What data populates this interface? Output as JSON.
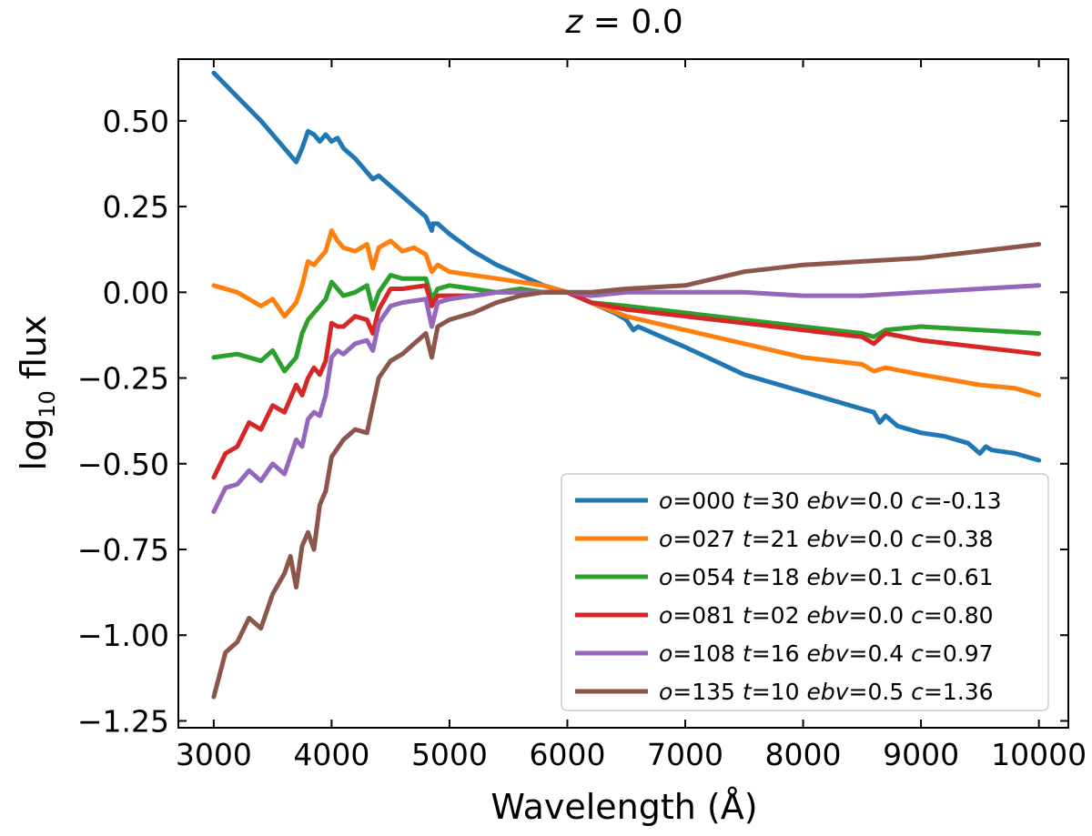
{
  "chart_data": {
    "type": "line",
    "title": {
      "var": "z",
      "op": " = ",
      "value": "0.0"
    },
    "xlabel": "Wavelength (Å)",
    "ylabel": {
      "base": "log",
      "sub": "10",
      "rest": " flux"
    },
    "xlim": [
      2700,
      10250
    ],
    "ylim": [
      -1.27,
      0.68
    ],
    "xticks": [
      3000,
      4000,
      5000,
      6000,
      7000,
      8000,
      9000,
      10000
    ],
    "xtick_labels": [
      "3000",
      "4000",
      "5000",
      "6000",
      "7000",
      "8000",
      "9000",
      "10000"
    ],
    "yticks": [
      0.5,
      0.25,
      0.0,
      -0.25,
      -0.5,
      -0.75,
      -1.0,
      -1.25
    ],
    "ytick_labels": [
      "0.50",
      "0.25",
      "0.00",
      "−0.25",
      "−0.50",
      "−0.75",
      "−1.00",
      "−1.25"
    ],
    "legend_position": "lower-right",
    "series": [
      {
        "name": "o=000 t=30 ebv=0.0 c=-0.13",
        "legend": [
          {
            "t": "o",
            "i": true
          },
          {
            "t": "=000 "
          },
          {
            "t": "t",
            "i": true
          },
          {
            "t": "=30 "
          },
          {
            "t": "ebv",
            "i": true
          },
          {
            "t": "=0.0 "
          },
          {
            "t": "c",
            "i": true
          },
          {
            "t": "=-0.13"
          }
        ],
        "color": "#1f77b4",
        "x": [
          3000,
          3200,
          3400,
          3600,
          3700,
          3750,
          3800,
          3850,
          3900,
          3950,
          4000,
          4050,
          4100,
          4200,
          4300,
          4350,
          4400,
          4500,
          4600,
          4700,
          4800,
          4850,
          4860,
          4900,
          5000,
          5200,
          5400,
          5600,
          5800,
          6000,
          6200,
          6400,
          6500,
          6560,
          6600,
          6800,
          7000,
          7500,
          8000,
          8500,
          8600,
          8650,
          8700,
          8800,
          9000,
          9200,
          9400,
          9500,
          9550,
          9600,
          9800,
          10000
        ],
        "y": [
          0.64,
          0.57,
          0.5,
          0.42,
          0.38,
          0.42,
          0.47,
          0.46,
          0.44,
          0.46,
          0.44,
          0.45,
          0.42,
          0.39,
          0.35,
          0.33,
          0.34,
          0.31,
          0.28,
          0.25,
          0.22,
          0.18,
          0.2,
          0.2,
          0.17,
          0.12,
          0.08,
          0.05,
          0.02,
          0.0,
          -0.03,
          -0.06,
          -0.08,
          -0.11,
          -0.1,
          -0.13,
          -0.16,
          -0.24,
          -0.29,
          -0.34,
          -0.35,
          -0.38,
          -0.36,
          -0.39,
          -0.41,
          -0.42,
          -0.44,
          -0.47,
          -0.45,
          -0.46,
          -0.47,
          -0.49
        ]
      },
      {
        "name": "o=027 t=21 ebv=0.0 c=0.38",
        "legend": [
          {
            "t": "o",
            "i": true
          },
          {
            "t": "=027 "
          },
          {
            "t": "t",
            "i": true
          },
          {
            "t": "=21 "
          },
          {
            "t": "ebv",
            "i": true
          },
          {
            "t": "=0.0 "
          },
          {
            "t": "c",
            "i": true
          },
          {
            "t": "=0.38"
          }
        ],
        "color": "#ff7f0e",
        "x": [
          3000,
          3200,
          3400,
          3500,
          3600,
          3700,
          3750,
          3800,
          3850,
          3900,
          3950,
          4000,
          4050,
          4100,
          4200,
          4300,
          4350,
          4400,
          4500,
          4600,
          4700,
          4800,
          4850,
          4900,
          5000,
          5200,
          5400,
          5600,
          5800,
          6000,
          6200,
          6500,
          7000,
          7500,
          8000,
          8500,
          8600,
          8700,
          9000,
          9500,
          9800,
          10000
        ],
        "y": [
          0.02,
          0.0,
          -0.04,
          -0.02,
          -0.07,
          -0.03,
          0.02,
          0.09,
          0.08,
          0.1,
          0.12,
          0.18,
          0.15,
          0.13,
          0.12,
          0.14,
          0.07,
          0.13,
          0.15,
          0.12,
          0.13,
          0.11,
          0.06,
          0.08,
          0.06,
          0.05,
          0.04,
          0.03,
          0.02,
          0.0,
          -0.03,
          -0.07,
          -0.11,
          -0.15,
          -0.19,
          -0.21,
          -0.23,
          -0.22,
          -0.24,
          -0.27,
          -0.28,
          -0.3
        ]
      },
      {
        "name": "o=054 t=18 ebv=0.1 c=0.61",
        "legend": [
          {
            "t": "o",
            "i": true
          },
          {
            "t": "=054 "
          },
          {
            "t": "t",
            "i": true
          },
          {
            "t": "=18 "
          },
          {
            "t": "ebv",
            "i": true
          },
          {
            "t": "=0.1 "
          },
          {
            "t": "c",
            "i": true
          },
          {
            "t": "=0.61"
          }
        ],
        "color": "#2ca02c",
        "x": [
          3000,
          3200,
          3400,
          3500,
          3600,
          3700,
          3750,
          3800,
          3850,
          3900,
          3950,
          4000,
          4050,
          4100,
          4200,
          4300,
          4350,
          4400,
          4500,
          4600,
          4800,
          4850,
          4900,
          5000,
          5200,
          5400,
          5600,
          5800,
          6000,
          6200,
          6500,
          7000,
          7500,
          8000,
          8500,
          8600,
          8700,
          9000,
          9500,
          10000
        ],
        "y": [
          -0.19,
          -0.18,
          -0.2,
          -0.17,
          -0.23,
          -0.19,
          -0.12,
          -0.08,
          -0.06,
          -0.04,
          -0.02,
          0.03,
          0.01,
          -0.01,
          0.0,
          0.02,
          -0.05,
          0.0,
          0.05,
          0.04,
          0.04,
          -0.02,
          0.01,
          0.02,
          0.01,
          0.0,
          0.01,
          0.0,
          0.0,
          -0.03,
          -0.04,
          -0.06,
          -0.08,
          -0.1,
          -0.12,
          -0.13,
          -0.11,
          -0.1,
          -0.11,
          -0.12
        ]
      },
      {
        "name": "o=081 t=02 ebv=0.0 c=0.80",
        "legend": [
          {
            "t": "o",
            "i": true
          },
          {
            "t": "=081 "
          },
          {
            "t": "t",
            "i": true
          },
          {
            "t": "=02 "
          },
          {
            "t": "ebv",
            "i": true
          },
          {
            "t": "=0.0 "
          },
          {
            "t": "c",
            "i": true
          },
          {
            "t": "=0.80"
          }
        ],
        "color": "#d62728",
        "x": [
          3000,
          3100,
          3200,
          3300,
          3400,
          3500,
          3600,
          3700,
          3750,
          3800,
          3850,
          3900,
          3950,
          4000,
          4050,
          4100,
          4200,
          4300,
          4350,
          4400,
          4500,
          4600,
          4800,
          4850,
          4900,
          5000,
          5200,
          5400,
          5600,
          5800,
          6000,
          6200,
          6500,
          7000,
          7500,
          8000,
          8500,
          8600,
          8700,
          9000,
          9500,
          10000
        ],
        "y": [
          -0.54,
          -0.47,
          -0.45,
          -0.38,
          -0.4,
          -0.33,
          -0.35,
          -0.27,
          -0.3,
          -0.25,
          -0.22,
          -0.24,
          -0.2,
          -0.09,
          -0.1,
          -0.1,
          -0.07,
          -0.08,
          -0.12,
          -0.05,
          0.01,
          0.01,
          0.02,
          -0.04,
          -0.01,
          -0.01,
          -0.01,
          0.0,
          0.0,
          0.0,
          0.0,
          -0.03,
          -0.05,
          -0.07,
          -0.09,
          -0.11,
          -0.13,
          -0.15,
          -0.12,
          -0.14,
          -0.16,
          -0.18
        ]
      },
      {
        "name": "o=108 t=16 ebv=0.4 c=0.97",
        "legend": [
          {
            "t": "o",
            "i": true
          },
          {
            "t": "=108 "
          },
          {
            "t": "t",
            "i": true
          },
          {
            "t": "=16 "
          },
          {
            "t": "ebv",
            "i": true
          },
          {
            "t": "=0.4 "
          },
          {
            "t": "c",
            "i": true
          },
          {
            "t": "=0.97"
          }
        ],
        "color": "#9467bd",
        "x": [
          3000,
          3100,
          3200,
          3300,
          3400,
          3500,
          3600,
          3700,
          3750,
          3800,
          3850,
          3900,
          3950,
          4000,
          4050,
          4100,
          4200,
          4300,
          4350,
          4400,
          4500,
          4600,
          4800,
          4850,
          4900,
          5000,
          5200,
          5400,
          5600,
          5800,
          6000,
          6200,
          6500,
          7000,
          7500,
          8000,
          8500,
          9000,
          9500,
          10000
        ],
        "y": [
          -0.64,
          -0.57,
          -0.56,
          -0.52,
          -0.55,
          -0.5,
          -0.53,
          -0.43,
          -0.45,
          -0.37,
          -0.35,
          -0.36,
          -0.3,
          -0.19,
          -0.17,
          -0.18,
          -0.15,
          -0.14,
          -0.17,
          -0.09,
          -0.04,
          -0.03,
          -0.02,
          -0.1,
          -0.03,
          -0.02,
          -0.01,
          0.0,
          0.0,
          0.0,
          0.0,
          -0.01,
          0.0,
          0.0,
          0.0,
          -0.01,
          -0.01,
          0.0,
          0.01,
          0.02
        ]
      },
      {
        "name": "o=135 t=10 ebv=0.5 c=1.36",
        "legend": [
          {
            "t": "o",
            "i": true
          },
          {
            "t": "=135 "
          },
          {
            "t": "t",
            "i": true
          },
          {
            "t": "=10 "
          },
          {
            "t": "ebv",
            "i": true
          },
          {
            "t": "=0.5 "
          },
          {
            "t": "c",
            "i": true
          },
          {
            "t": "=1.36"
          }
        ],
        "color": "#8c564b",
        "x": [
          3000,
          3100,
          3200,
          3300,
          3400,
          3500,
          3600,
          3650,
          3700,
          3750,
          3800,
          3850,
          3900,
          3950,
          4000,
          4100,
          4200,
          4300,
          4350,
          4400,
          4500,
          4600,
          4800,
          4850,
          4900,
          5000,
          5200,
          5400,
          5600,
          5800,
          6000,
          6200,
          6500,
          7000,
          7500,
          8000,
          8500,
          9000,
          9500,
          10000
        ],
        "y": [
          -1.18,
          -1.05,
          -1.02,
          -0.95,
          -0.98,
          -0.88,
          -0.82,
          -0.77,
          -0.86,
          -0.74,
          -0.7,
          -0.75,
          -0.62,
          -0.58,
          -0.48,
          -0.43,
          -0.4,
          -0.41,
          -0.33,
          -0.25,
          -0.2,
          -0.18,
          -0.12,
          -0.19,
          -0.1,
          -0.08,
          -0.06,
          -0.03,
          -0.01,
          0.0,
          0.0,
          0.0,
          0.01,
          0.02,
          0.06,
          0.08,
          0.09,
          0.1,
          0.12,
          0.14
        ]
      }
    ]
  }
}
